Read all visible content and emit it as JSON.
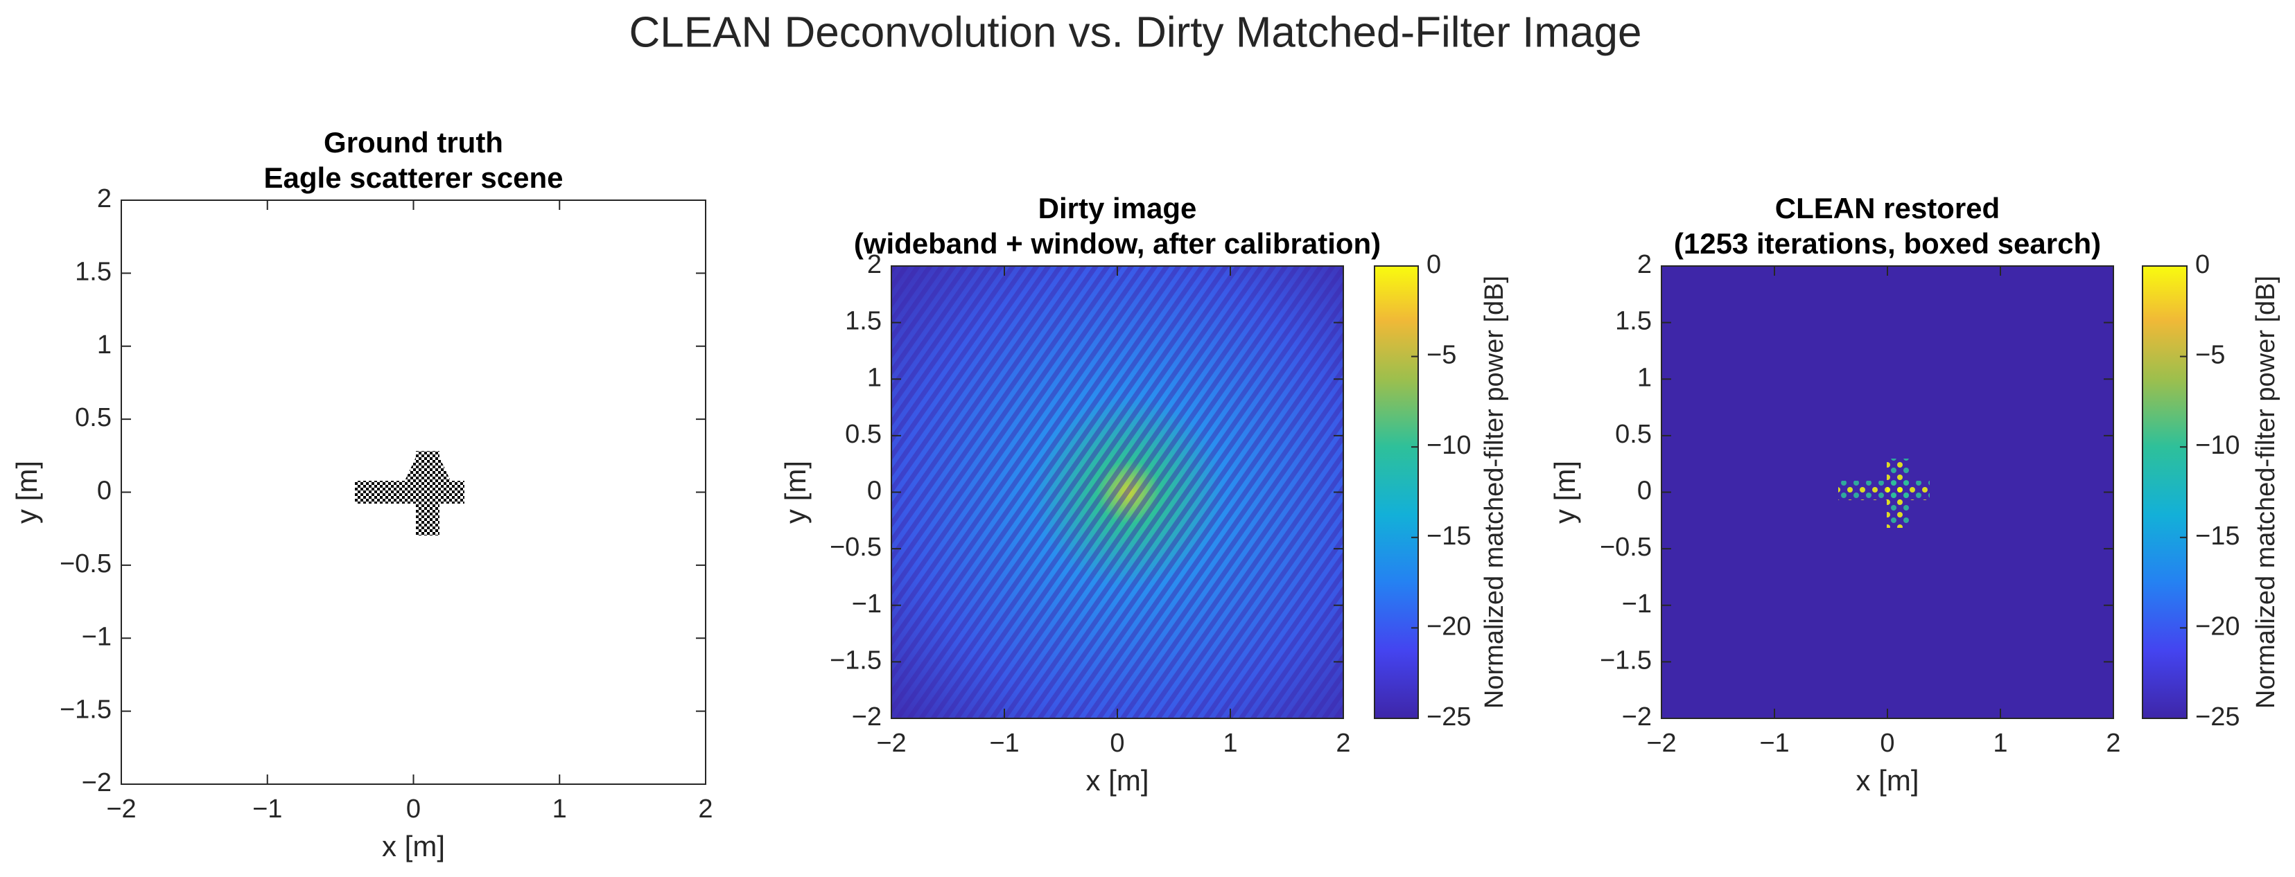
{
  "title": "CLEAN Deconvolution vs. Dirty Matched-Filter Image",
  "chart_data": [
    {
      "type": "image",
      "title": [
        "Ground truth",
        "Eagle scatterer scene"
      ],
      "xlabel": "x [m]",
      "ylabel": "y [m]",
      "xlim": [
        -2,
        2
      ],
      "ylim": [
        -2,
        2
      ],
      "xticks": [
        {
          "value": -2,
          "label": "−2"
        },
        {
          "value": -1,
          "label": "−1"
        },
        0,
        1,
        2
      ],
      "yticks": [
        {
          "value": -2,
          "label": "−2"
        },
        {
          "value": -1.5,
          "label": "−1.5"
        },
        {
          "value": -1,
          "label": "−1"
        },
        {
          "value": -0.5,
          "label": "−0.5"
        },
        0,
        0.5,
        1,
        1.5,
        2
      ]
    },
    {
      "type": "image",
      "title": [
        "Dirty image",
        "(wideband + window, after calibration)"
      ],
      "xlabel": "x [m]",
      "ylabel": "y [m]",
      "xlim": [
        -2,
        2
      ],
      "ylim": [
        -2,
        2
      ],
      "xticks": [
        {
          "value": -2,
          "label": "−2"
        },
        {
          "value": -1,
          "label": "−1"
        },
        0,
        1,
        2
      ],
      "yticks": [
        {
          "value": -2,
          "label": "−2"
        },
        {
          "value": -1.5,
          "label": "−1.5"
        },
        {
          "value": -1,
          "label": "−1"
        },
        {
          "value": -0.5,
          "label": "−0.5"
        },
        0,
        0.5,
        1,
        1.5,
        2
      ],
      "clim": [
        -25,
        0
      ],
      "clabel": "Normalized matched-filter power [dB]",
      "cticks": [
        {
          "value": -25,
          "label": "−25"
        },
        {
          "value": -20,
          "label": "−20"
        },
        {
          "value": -15,
          "label": "−15"
        },
        {
          "value": -10,
          "label": "−10"
        },
        {
          "value": -5,
          "label": "−5"
        },
        0
      ]
    },
    {
      "type": "image",
      "title": [
        "CLEAN restored",
        "(1253 iterations, boxed search)"
      ],
      "xlabel": "x [m]",
      "ylabel": "y [m]",
      "xlim": [
        -2,
        2
      ],
      "ylim": [
        -2,
        2
      ],
      "xticks": [
        {
          "value": -2,
          "label": "−2"
        },
        {
          "value": -1,
          "label": "−1"
        },
        0,
        1,
        2
      ],
      "yticks": [
        {
          "value": -2,
          "label": "−2"
        },
        {
          "value": -1.5,
          "label": "−1.5"
        },
        {
          "value": -1,
          "label": "−1"
        },
        {
          "value": -0.5,
          "label": "−0.5"
        },
        0,
        0.5,
        1,
        1.5,
        2
      ],
      "clim": [
        -25,
        0
      ],
      "clabel": "Normalized matched-filter power [dB]",
      "cticks": [
        {
          "value": -25,
          "label": "−25"
        },
        {
          "value": -20,
          "label": "−20"
        },
        {
          "value": -15,
          "label": "−15"
        },
        {
          "value": -10,
          "label": "−10"
        },
        {
          "value": -5,
          "label": "−5"
        },
        0
      ]
    }
  ]
}
